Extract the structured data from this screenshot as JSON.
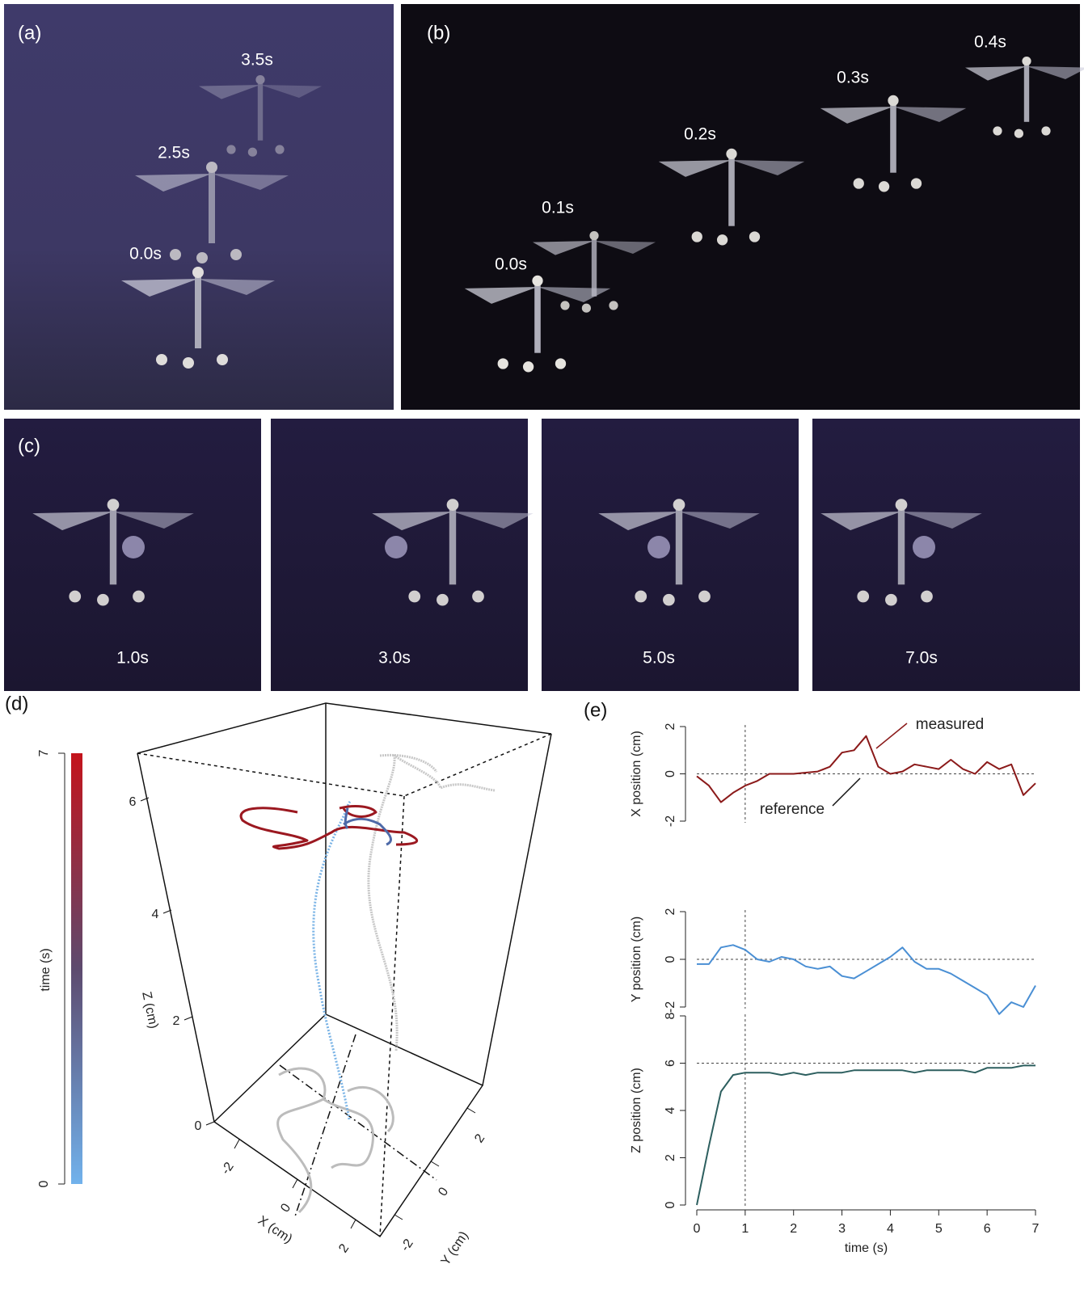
{
  "panels": {
    "a": {
      "label": "(a)",
      "times": [
        "3.5s",
        "2.5s",
        "0.0s"
      ]
    },
    "b": {
      "label": "(b)",
      "times": [
        "0.0s",
        "0.1s",
        "0.2s",
        "0.3s",
        "0.4s"
      ]
    },
    "c": {
      "label": "(c)",
      "times": [
        "1.0s",
        "3.0s",
        "5.0s",
        "7.0s"
      ]
    },
    "d": {
      "label": "(d)"
    },
    "e": {
      "label": "(e)"
    }
  },
  "panel_d": {
    "colorbar": {
      "label": "time (s)",
      "ticks": [
        0,
        7
      ]
    },
    "zlabel": "Z (cm)",
    "zticks": [
      0,
      2,
      4,
      6
    ],
    "xlabel": "X (cm)",
    "xticks": [
      -2,
      0,
      2
    ],
    "ylabel": "Y (cm)",
    "yticks": [
      -2,
      0,
      2
    ]
  },
  "chart_data": [
    {
      "type": "line",
      "ylabel": "X position (cm)",
      "color": "#8b1a1a",
      "x": [
        0,
        0.25,
        0.5,
        0.75,
        1,
        1.25,
        1.5,
        1.75,
        2,
        2.25,
        2.5,
        2.75,
        3,
        3.25,
        3.5,
        3.75,
        4,
        4.25,
        4.5,
        4.75,
        5,
        5.25,
        5.5,
        5.75,
        6,
        6.25,
        6.5,
        6.75,
        7
      ],
      "values": [
        -0.1,
        -0.5,
        -1.2,
        -0.8,
        -0.5,
        -0.3,
        0,
        0,
        0,
        0.05,
        0.1,
        0.3,
        0.9,
        1,
        1.6,
        0.3,
        0,
        0.1,
        0.4,
        0.3,
        0.2,
        0.6,
        0.2,
        0,
        0.5,
        0.2,
        0.4,
        -0.9,
        -0.4
      ],
      "xlim": [
        0,
        7
      ],
      "ylim": [
        -2,
        2
      ],
      "yticks": [
        -2,
        0,
        2
      ],
      "reference": 0,
      "vline": 1,
      "annotations": [
        "measured",
        "reference"
      ]
    },
    {
      "type": "line",
      "ylabel": "Y position (cm)",
      "color": "#4a8fd4",
      "x": [
        0,
        0.25,
        0.5,
        0.75,
        1,
        1.25,
        1.5,
        1.75,
        2,
        2.25,
        2.5,
        2.75,
        3,
        3.25,
        3.5,
        3.75,
        4,
        4.25,
        4.5,
        4.75,
        5,
        5.25,
        5.5,
        5.75,
        6,
        6.25,
        6.5,
        6.75,
        7
      ],
      "values": [
        -0.2,
        -0.2,
        0.5,
        0.6,
        0.4,
        0,
        -0.1,
        0.1,
        0,
        -0.3,
        -0.4,
        -0.3,
        -0.7,
        -0.8,
        -0.5,
        -0.2,
        0.1,
        0.5,
        -0.1,
        -0.4,
        -0.4,
        -0.6,
        -0.9,
        -1.2,
        -1.5,
        -2.3,
        -1.8,
        -2,
        -1.1
      ],
      "xlim": [
        0,
        7
      ],
      "ylim": [
        -2,
        2
      ],
      "yticks": [
        -2,
        0,
        2
      ],
      "reference": 0,
      "vline": 1
    },
    {
      "type": "line",
      "ylabel": "Z position (cm)",
      "color": "#2d5f5f",
      "xlabel": "time (s)",
      "x": [
        0,
        0.25,
        0.5,
        0.75,
        1,
        1.25,
        1.5,
        1.75,
        2,
        2.25,
        2.5,
        2.75,
        3,
        3.25,
        3.5,
        3.75,
        4,
        4.25,
        4.5,
        4.75,
        5,
        5.25,
        5.5,
        5.75,
        6,
        6.25,
        6.5,
        6.75,
        7
      ],
      "values": [
        0,
        2.5,
        4.8,
        5.5,
        5.6,
        5.6,
        5.6,
        5.5,
        5.6,
        5.5,
        5.6,
        5.6,
        5.6,
        5.7,
        5.7,
        5.7,
        5.7,
        5.7,
        5.6,
        5.7,
        5.7,
        5.7,
        5.7,
        5.6,
        5.8,
        5.8,
        5.8,
        5.9,
        5.9
      ],
      "xlim": [
        0,
        7
      ],
      "ylim": [
        0,
        8
      ],
      "yticks": [
        0,
        2,
        4,
        6,
        8
      ],
      "xticks": [
        0,
        1,
        2,
        3,
        4,
        5,
        6,
        7
      ],
      "reference": 6,
      "vline": 1
    }
  ]
}
